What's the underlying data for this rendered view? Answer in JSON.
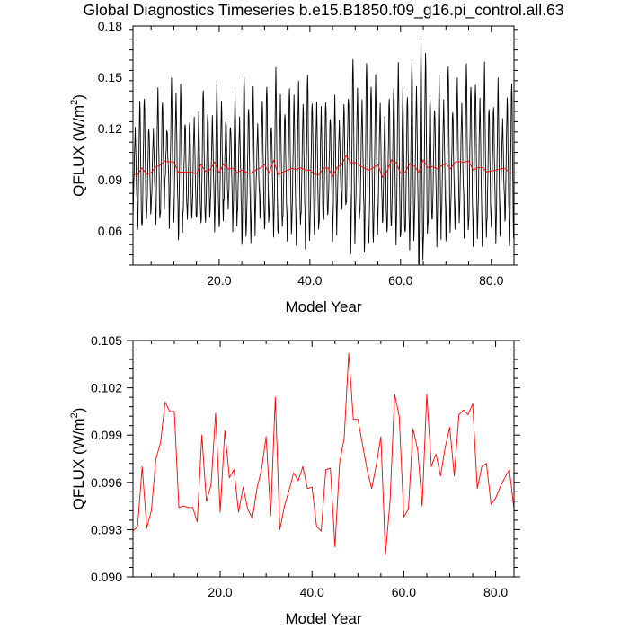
{
  "figure": {
    "title": "Global Diagnostics Timeseries b.e15.B1850.f09_g16.pi_control.all.63"
  },
  "chart_data": [
    {
      "type": "line",
      "xlabel": "Model Year",
      "ylabel_main": "QFLUX (W/m",
      "ylabel_sup": "2",
      "ylabel_close": ")",
      "xlim": [
        1,
        85
      ],
      "ylim": [
        0.04,
        0.18
      ],
      "x_ticks": [
        20,
        40,
        60,
        80
      ],
      "x_tick_labels": [
        "20.0",
        "40.0",
        "60.0",
        "80.0"
      ],
      "y_ticks": [
        0.06,
        0.09,
        0.12,
        0.15,
        0.18
      ],
      "y_tick_labels": [
        "0.06",
        "0.09",
        "0.12",
        "0.15",
        "0.18"
      ],
      "series": [
        {
          "role": "monthly",
          "color": "#000000",
          "x_start": 1,
          "x_step": 0.0833333,
          "amp_cycle": [
            -0.032,
            -0.026,
            -0.014,
            0.002,
            0.016,
            0.031,
            0.039,
            0.03,
            0.012,
            -0.003,
            -0.018,
            -0.028
          ],
          "peak_values": [
            0.119,
            0.136,
            0.139,
            0.123,
            0.117,
            0.143,
            0.136,
            0.121,
            0.146,
            0.139,
            0.146,
            0.124,
            0.127,
            0.124,
            0.129,
            0.143,
            0.131,
            0.124,
            0.146,
            0.136,
            0.126,
            0.124,
            0.139,
            0.126,
            0.151,
            0.134,
            0.141,
            0.121,
            0.136,
            0.146,
            0.124,
            0.153,
            0.139,
            0.129,
            0.146,
            0.136,
            0.146,
            0.134,
            0.153,
            0.138,
            0.133,
            0.132,
            0.136,
            0.128,
            0.136,
            0.123,
            0.134,
            0.139,
            0.164,
            0.141,
            0.136,
            0.159,
            0.147,
            0.148,
            0.133,
            0.127,
            0.139,
            0.147,
            0.156,
            0.143,
            0.139,
            0.161,
            0.141,
            0.171,
            0.164,
            0.139,
            0.134,
            0.149,
            0.136,
            0.157,
            0.132,
            0.146,
            0.133,
            0.158,
            0.146,
            0.149,
            0.135,
            0.158,
            0.132,
            0.135,
            0.146,
            0.124,
            0.138,
            0.148,
            0.129
          ]
        },
        {
          "role": "annual",
          "color": "#ff0000",
          "x_start": 1,
          "x_step": 1,
          "values": [
            0.0929,
            0.0932,
            0.097,
            0.0931,
            0.0942,
            0.0975,
            0.0985,
            0.1011,
            0.1005,
            0.1005,
            0.0944,
            0.0945,
            0.0944,
            0.0944,
            0.0935,
            0.099,
            0.0948,
            0.0958,
            0.1004,
            0.0941,
            0.0993,
            0.0963,
            0.0968,
            0.0941,
            0.0957,
            0.0943,
            0.0937,
            0.0956,
            0.0968,
            0.0989,
            0.0939,
            0.1014,
            0.093,
            0.0945,
            0.0955,
            0.0966,
            0.0961,
            0.097,
            0.0956,
            0.0957,
            0.0932,
            0.0929,
            0.0968,
            0.0969,
            0.0919,
            0.0972,
            0.0988,
            0.1042,
            0.1,
            0.1,
            0.0984,
            0.0968,
            0.0956,
            0.0971,
            0.0989,
            0.0914,
            0.0948,
            0.1016,
            0.1002,
            0.0938,
            0.0943,
            0.0994,
            0.0981,
            0.0945,
            0.1016,
            0.097,
            0.0978,
            0.0964,
            0.0982,
            0.0995,
            0.0964,
            0.1003,
            0.1006,
            0.1003,
            0.101,
            0.0956,
            0.097,
            0.0972,
            0.0946,
            0.095,
            0.0957,
            0.0963,
            0.0968,
            0.0943
          ]
        }
      ]
    },
    {
      "type": "line",
      "xlabel": "Model Year",
      "ylabel_main": "QFLUX (W/m",
      "ylabel_sup": "2",
      "ylabel_close": ")",
      "xlim": [
        1,
        84
      ],
      "ylim": [
        0.09,
        0.105
      ],
      "x_ticks": [
        20,
        40,
        60,
        80
      ],
      "x_tick_labels": [
        "20.0",
        "40.0",
        "60.0",
        "80.0"
      ],
      "y_ticks": [
        0.09,
        0.093,
        0.096,
        0.099,
        0.102,
        0.105
      ],
      "y_tick_labels": [
        "0.090",
        "0.093",
        "0.096",
        "0.099",
        "0.102",
        "0.105"
      ],
      "series": [
        {
          "role": "annual",
          "color": "#ff0000",
          "x_start": 1,
          "x_step": 1,
          "values": [
            0.0929,
            0.0932,
            0.097,
            0.0931,
            0.0942,
            0.0975,
            0.0985,
            0.1011,
            0.1005,
            0.1005,
            0.0944,
            0.0945,
            0.0944,
            0.0944,
            0.0935,
            0.099,
            0.0948,
            0.0958,
            0.1004,
            0.0941,
            0.0993,
            0.0963,
            0.0968,
            0.0941,
            0.0957,
            0.0943,
            0.0937,
            0.0956,
            0.0968,
            0.0989,
            0.0939,
            0.1014,
            0.093,
            0.0945,
            0.0955,
            0.0966,
            0.0961,
            0.097,
            0.0956,
            0.0957,
            0.0932,
            0.0929,
            0.0968,
            0.0969,
            0.0919,
            0.0972,
            0.0988,
            0.1042,
            0.1,
            0.1,
            0.0984,
            0.0968,
            0.0956,
            0.0971,
            0.0989,
            0.0914,
            0.0948,
            0.1016,
            0.1002,
            0.0938,
            0.0943,
            0.0994,
            0.0981,
            0.0945,
            0.1016,
            0.097,
            0.0978,
            0.0964,
            0.0982,
            0.0995,
            0.0964,
            0.1003,
            0.1006,
            0.1003,
            0.101,
            0.0956,
            0.097,
            0.0972,
            0.0946,
            0.095,
            0.0957,
            0.0963,
            0.0968,
            0.0943
          ]
        }
      ]
    }
  ]
}
